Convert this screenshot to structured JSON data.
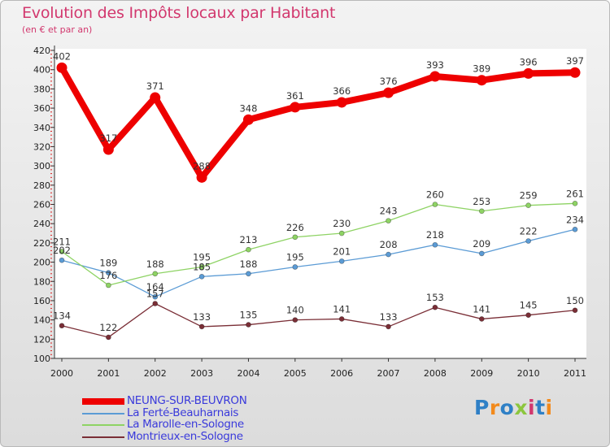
{
  "chart_data": {
    "type": "line",
    "title": "Evolution des Impôts locaux par Habitant",
    "subtitle": "(en € et par an)",
    "categories": [
      "2000",
      "2001",
      "2002",
      "2003",
      "2004",
      "2005",
      "2006",
      "2007",
      "2008",
      "2009",
      "2010",
      "2011"
    ],
    "ylim": [
      100,
      420
    ],
    "yticks": [
      100,
      120,
      140,
      160,
      180,
      200,
      220,
      240,
      260,
      280,
      300,
      320,
      340,
      360,
      380,
      400,
      420
    ],
    "grid": false,
    "legend_position": "bottom-left",
    "series": [
      {
        "name": "NEUNG-SUR-BEUVRON",
        "color": "#ee0000",
        "bold": true,
        "values": [
          402,
          317,
          371,
          288,
          348,
          361,
          366,
          376,
          393,
          389,
          396,
          397
        ]
      },
      {
        "name": "La Ferté-Beauharnais",
        "color": "#5b9bd5",
        "bold": false,
        "values": [
          202,
          189,
          164,
          185,
          188,
          195,
          201,
          208,
          218,
          209,
          222,
          234
        ]
      },
      {
        "name": "La Marolle-en-Sologne",
        "color": "#8ed364",
        "bold": false,
        "values": [
          211,
          176,
          188,
          195,
          213,
          226,
          230,
          243,
          260,
          253,
          259,
          261
        ]
      },
      {
        "name": "Montrieux-en-Sologne",
        "color": "#7a2e36",
        "bold": false,
        "values": [
          134,
          122,
          157,
          133,
          135,
          140,
          141,
          133,
          153,
          141,
          145,
          150
        ]
      }
    ]
  },
  "logo": {
    "text": "Proxiti",
    "colors": [
      "#2f80c6",
      "#f28a1c",
      "#2f80c6",
      "#8cc63e",
      "#d2386e",
      "#2f80c6",
      "#f28a1c"
    ]
  }
}
